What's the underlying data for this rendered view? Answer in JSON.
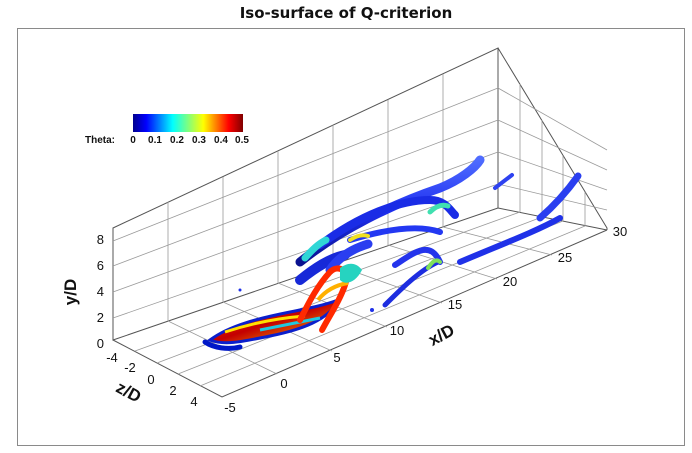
{
  "title": "Iso-surface of Q-criterion",
  "chart_data": {
    "type": "3d-isosurface",
    "title": "Iso-surface of Q-criterion",
    "colorbar": {
      "label": "Theta:",
      "ticks": [
        "0",
        "0.1",
        "0.2",
        "0.3",
        "0.4",
        "0.5"
      ],
      "range": [
        0,
        0.5
      ],
      "colormap": "jet"
    },
    "axes": {
      "x": {
        "label": "x/D",
        "ticks": [
          "-5",
          "0",
          "5",
          "10",
          "15",
          "20",
          "25",
          "30"
        ],
        "range": [
          -5,
          30
        ]
      },
      "y": {
        "label": "y/D",
        "ticks": [
          "0",
          "2",
          "4",
          "6",
          "8"
        ],
        "range": [
          0,
          9
        ]
      },
      "z": {
        "label": "z/D",
        "ticks": [
          "-4",
          "-2",
          "0",
          "2",
          "4"
        ],
        "range": [
          -4,
          4
        ]
      }
    },
    "grid": true
  }
}
